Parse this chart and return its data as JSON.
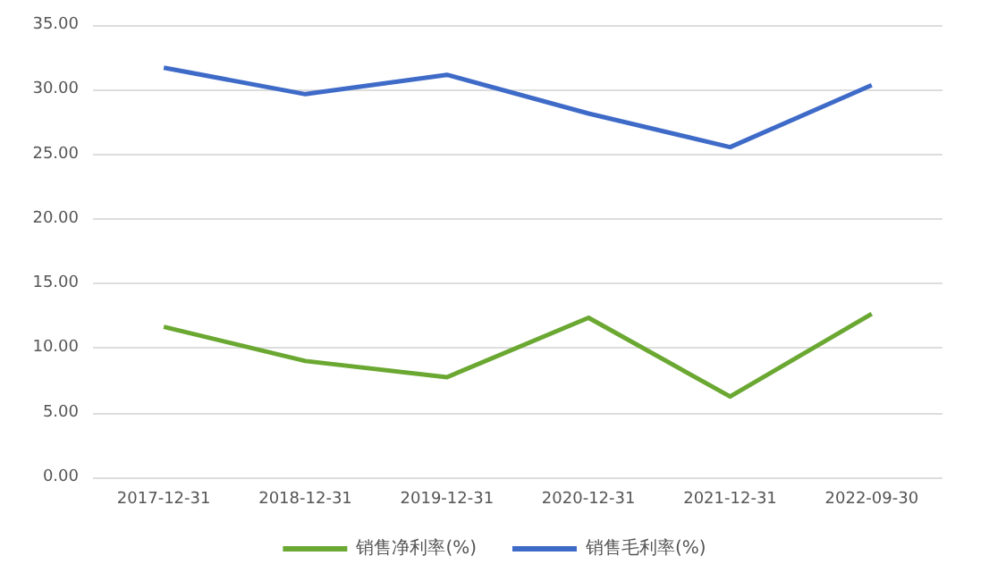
{
  "chart_data": {
    "type": "line",
    "categories": [
      "2017-12-31",
      "2018-12-31",
      "2019-12-31",
      "2020-12-31",
      "2021-12-31",
      "2022-09-30"
    ],
    "series": [
      {
        "name": "销售净利率(%)",
        "color": "#6aa832",
        "values": [
          11.65,
          9.0,
          7.75,
          12.35,
          6.25,
          12.65
        ]
      },
      {
        "name": "销售毛利率(%)",
        "color": "#3f6bc8",
        "values": [
          31.7,
          29.65,
          31.15,
          28.15,
          25.55,
          30.35
        ]
      }
    ],
    "ylim": [
      0,
      35
    ],
    "yticks": [
      {
        "value": 0,
        "label": "0.00"
      },
      {
        "value": 5,
        "label": "5.00"
      },
      {
        "value": 10,
        "label": "10.00"
      },
      {
        "value": 15,
        "label": "15.00"
      },
      {
        "value": 20,
        "label": "20.00"
      },
      {
        "value": 25,
        "label": "25.00"
      },
      {
        "value": 30,
        "label": "30.00"
      },
      {
        "value": 35,
        "label": "35.00"
      }
    ],
    "grid": "y",
    "legend": "bottom",
    "marker": "none",
    "line_style": "solid"
  }
}
